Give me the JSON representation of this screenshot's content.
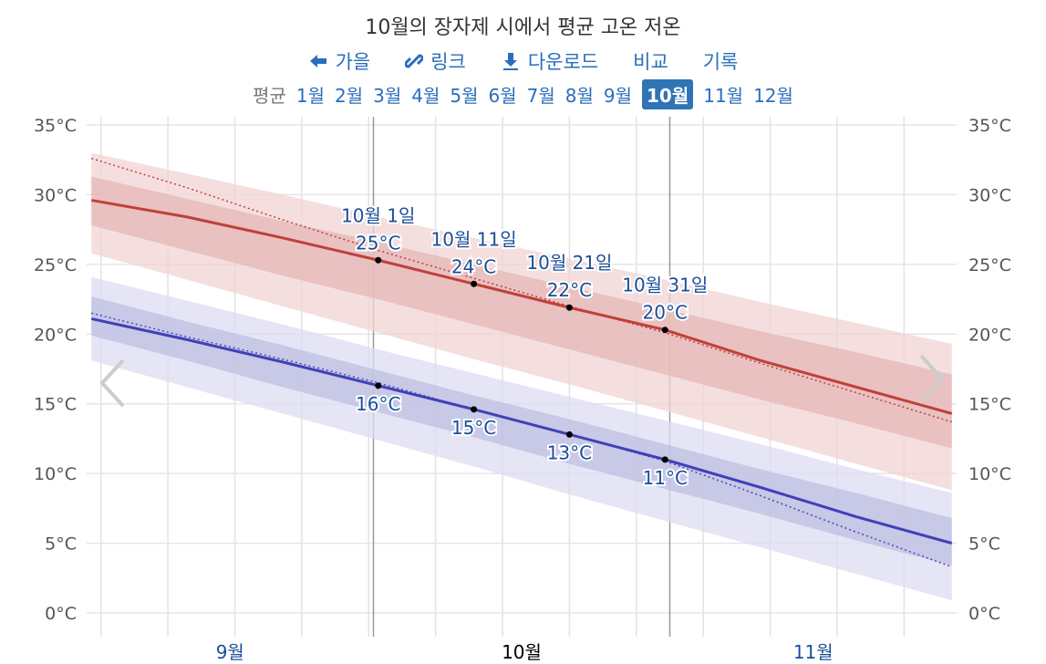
{
  "header": {
    "title": "10월의 장자제 시에서 평균 고온 저온",
    "links": [
      "가을",
      "링크",
      "다운로드",
      "비교",
      "기록"
    ],
    "months_label": "평균",
    "months": [
      "1월",
      "2월",
      "3월",
      "4월",
      "5월",
      "6월",
      "7월",
      "8월",
      "9월",
      "10월",
      "11월",
      "12월"
    ],
    "selected": "10월"
  },
  "chart_data": {
    "type": "line",
    "x": [
      "9월 1일",
      "9월 11일",
      "9월 21일",
      "10월 1일",
      "10월 11일",
      "10월 21일",
      "10월 31일",
      "11월 10일",
      "11월 20일",
      "11월 30일"
    ],
    "xlim": [
      "9월 1일",
      "11월 30일"
    ],
    "months": [
      "9월",
      "10월",
      "11월"
    ],
    "selected_month": "10월",
    "ylim": [
      0,
      35
    ],
    "yticks": [
      {
        "value": 0,
        "label": "0°C"
      },
      {
        "value": 5,
        "label": "5°C"
      },
      {
        "value": 10,
        "label": "10°C"
      },
      {
        "value": 15,
        "label": "15°C"
      },
      {
        "value": 20,
        "label": "20°C"
      },
      {
        "value": 25,
        "label": "25°C"
      },
      {
        "value": 30,
        "label": "30°C"
      },
      {
        "value": 35,
        "label": "35°C"
      }
    ],
    "grid": true,
    "bands": [
      {
        "color": "#f1d3d3",
        "lower": [
          25.8,
          23.9,
          22.0,
          20.1,
          18.2,
          16.4,
          14.5,
          12.6,
          10.7,
          8.8
        ],
        "upper": [
          33.0,
          31.5,
          30.0,
          28.4,
          26.9,
          25.4,
          23.9,
          22.3,
          20.8,
          19.3
        ]
      },
      {
        "color": "#e4b7b7",
        "lower": [
          27.8,
          26.0,
          24.2,
          22.5,
          20.7,
          18.9,
          17.1,
          15.3,
          13.6,
          11.8
        ],
        "upper": [
          31.3,
          29.7,
          28.1,
          26.6,
          25.0,
          23.4,
          21.8,
          20.2,
          18.7,
          17.1
        ]
      },
      {
        "color": "#dcdcf1",
        "lower": [
          18.1,
          16.2,
          14.3,
          12.4,
          10.5,
          8.5,
          6.6,
          4.7,
          2.8,
          0.9
        ],
        "upper": [
          24.1,
          22.4,
          20.7,
          18.9,
          17.2,
          15.5,
          13.8,
          12.1,
          10.3,
          8.6
        ]
      },
      {
        "color": "#bdbde2",
        "lower": [
          19.9,
          18.1,
          16.2,
          14.4,
          12.6,
          10.7,
          8.9,
          7.1,
          5.2,
          3.4
        ],
        "upper": [
          22.7,
          20.9,
          19.2,
          17.4,
          15.6,
          13.9,
          12.1,
          10.3,
          8.6,
          6.8
        ]
      }
    ],
    "series": [
      {
        "color": "#c0403a",
        "dashed": true,
        "values": [
          32.6,
          30.5,
          28.2,
          26.0,
          24.0,
          22.0,
          20.1,
          17.9,
          15.8,
          13.7
        ]
      },
      {
        "color": "#4848b8",
        "dashed": true,
        "values": [
          21.5,
          19.8,
          18.2,
          16.5,
          14.6,
          12.8,
          10.9,
          8.4,
          5.8,
          3.3
        ]
      },
      {
        "color": "#c0403a",
        "dashed": false,
        "values": [
          29.6,
          28.4,
          26.9,
          25.3,
          23.6,
          21.9,
          20.3,
          18.1,
          16.2,
          14.3
        ],
        "value_labels": [
          null,
          null,
          null,
          "25°C",
          "24°C",
          "22°C",
          "20°C",
          null,
          null,
          null
        ],
        "label_pos": "above"
      },
      {
        "color": "#4040b8",
        "dashed": false,
        "values": [
          21.1,
          19.6,
          18.0,
          16.3,
          14.6,
          12.8,
          11.0,
          9.0,
          6.9,
          5.0
        ],
        "value_labels": [
          null,
          null,
          null,
          "16°C",
          "15°C",
          "13°C",
          "11°C",
          null,
          null,
          null
        ],
        "label_pos": "below"
      }
    ]
  }
}
